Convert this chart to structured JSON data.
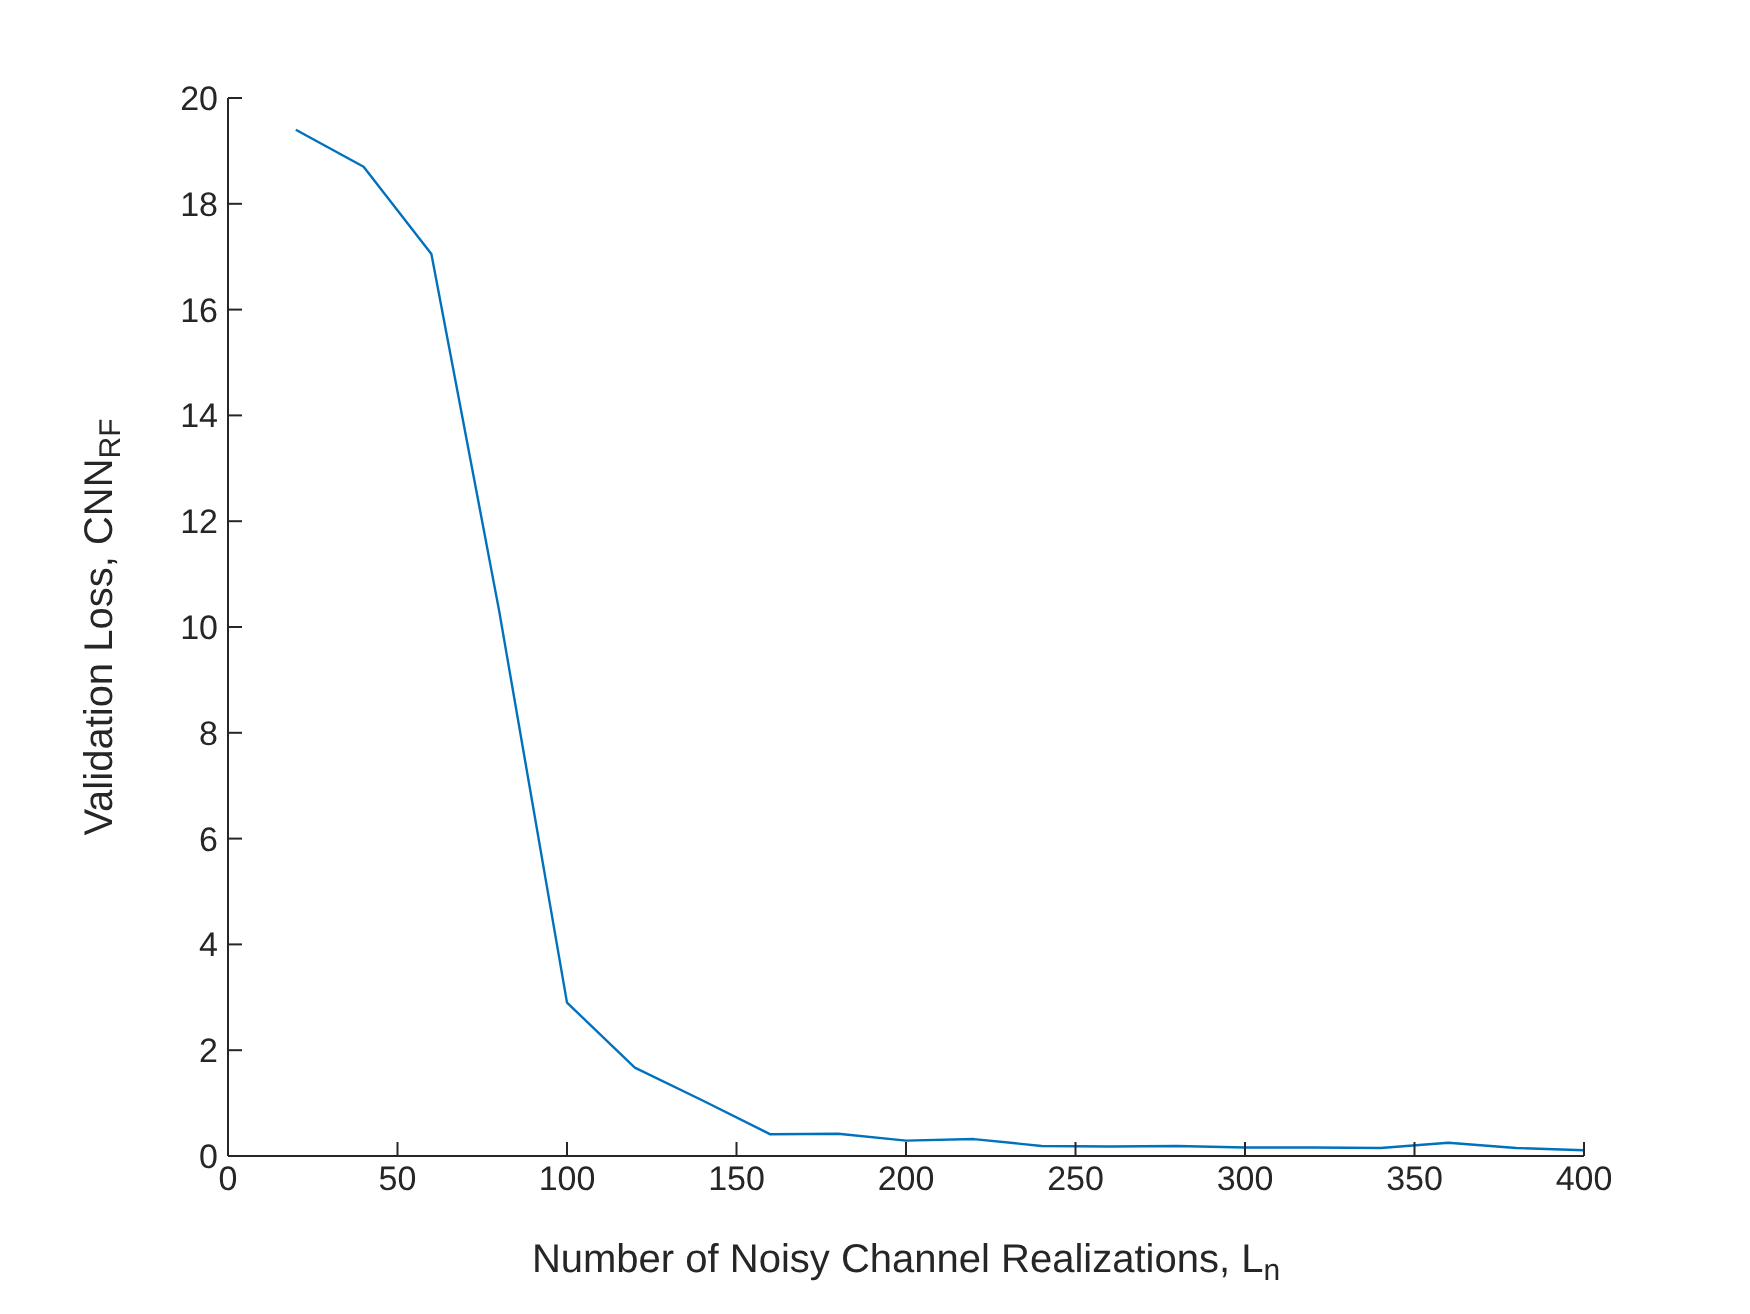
{
  "chart_data": {
    "type": "line",
    "xlabel": "Number of Noisy Channel Realizations, L$_{n}$",
    "ylabel": "Validation Loss, CNN$_{RF}$",
    "x": [
      20,
      40,
      60,
      80,
      100,
      120,
      140,
      160,
      180,
      200,
      220,
      240,
      260,
      280,
      300,
      320,
      340,
      360,
      380,
      400
    ],
    "series": [
      {
        "color": "#0072bd",
        "values": [
          19.4,
          18.7,
          17.05,
          10.3,
          2.9,
          1.67,
          1.05,
          0.41,
          0.42,
          0.29,
          0.32,
          0.19,
          0.18,
          0.19,
          0.16,
          0.16,
          0.15,
          0.25,
          0.15,
          0.11
        ]
      }
    ],
    "xlim": [
      0,
      400
    ],
    "xticks": [
      0,
      50,
      100,
      150,
      200,
      250,
      300,
      350,
      400
    ],
    "ylim": [
      0,
      20
    ],
    "yticks": [
      0,
      2,
      4,
      6,
      8,
      10,
      12,
      14,
      16,
      18,
      20
    ],
    "grid": false,
    "legend": false,
    "marker": "none",
    "line_style": "solid"
  }
}
